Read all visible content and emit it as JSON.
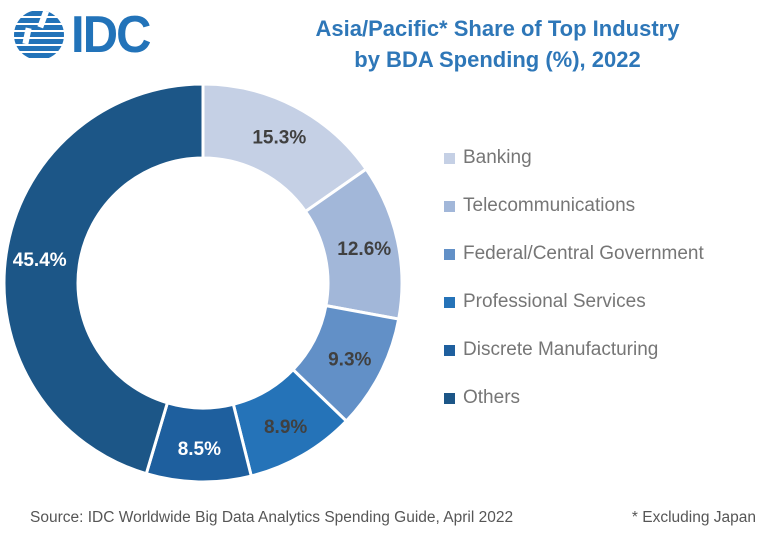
{
  "logo": {
    "text": "IDC",
    "color": "#2273B9"
  },
  "title": {
    "line1": "Asia/Pacific* Share of Top Industry",
    "line2": "by BDA Spending (%), 2022",
    "color": "#2E77B8"
  },
  "chart_data": {
    "type": "pie",
    "subtype": "donut",
    "title": "Asia/Pacific* Share of Top Industry by BDA Spending (%), 2022",
    "unit": "%",
    "start_angle_deg": 0,
    "direction": "clockwise",
    "inner_radius_ratio": 0.63,
    "legend_position": "right",
    "slices": [
      {
        "label": "Banking",
        "value": 15.3,
        "display": "15.3%",
        "color": "#C5D0E5",
        "label_color": "#404040"
      },
      {
        "label": "Telecommunications",
        "value": 12.6,
        "display": "12.6%",
        "color": "#A2B7D9",
        "label_color": "#404040"
      },
      {
        "label": "Federal/Central Government",
        "value": 9.3,
        "display": "9.3%",
        "color": "#6290C7",
        "label_color": "#404040"
      },
      {
        "label": "Professional Services",
        "value": 8.9,
        "display": "8.9%",
        "color": "#2573B8",
        "label_color": "#404040"
      },
      {
        "label": "Discrete Manufacturing",
        "value": 8.5,
        "display": "8.5%",
        "color": "#1E5F9E",
        "label_color": "#FFFFFF"
      },
      {
        "label": "Others",
        "value": 45.4,
        "display": "45.4%",
        "color": "#1C5687",
        "label_color": "#FFFFFF"
      }
    ]
  },
  "footer": {
    "source": "Source: IDC Worldwide Big Data Analytics Spending Guide, April 2022",
    "note": "* Excluding Japan"
  }
}
